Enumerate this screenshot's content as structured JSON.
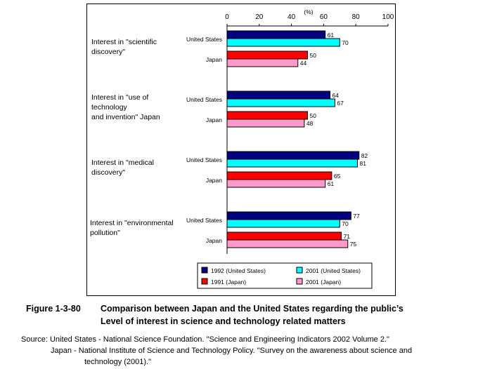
{
  "chart_data": {
    "type": "bar",
    "orientation": "horizontal",
    "unit_label": "(%)",
    "xlim": [
      0,
      100
    ],
    "x_ticks": [
      "0",
      "20",
      "40",
      "60",
      "80",
      "100"
    ],
    "groups": [
      {
        "label_lines": [
          "Interest in \"scientific",
          "discovery\""
        ],
        "rows": [
          {
            "label": "United States",
            "bars": [
              {
                "series": 0,
                "value": 61
              },
              {
                "series": 1,
                "value": 70
              }
            ]
          },
          {
            "label": "Japan",
            "bars": [
              {
                "series": 2,
                "value": 50
              },
              {
                "series": 3,
                "value": 44
              }
            ]
          }
        ]
      },
      {
        "label_lines": [
          "Interest in \"use of",
          "technology",
          "and invention\" Japan"
        ],
        "rows": [
          {
            "label": "United States",
            "bars": [
              {
                "series": 0,
                "value": 64
              },
              {
                "series": 1,
                "value": 67
              }
            ]
          },
          {
            "label": "Japan",
            "bars": [
              {
                "series": 2,
                "value": 50
              },
              {
                "series": 3,
                "value": 48
              }
            ]
          }
        ]
      },
      {
        "label_lines": [
          "Interest in \"medical",
          "discovery\""
        ],
        "rows": [
          {
            "label": "United States",
            "bars": [
              {
                "series": 0,
                "value": 82
              },
              {
                "series": 1,
                "value": 81
              }
            ]
          },
          {
            "label": "Japan",
            "bars": [
              {
                "series": 2,
                "value": 65
              },
              {
                "series": 3,
                "value": 61
              }
            ]
          }
        ]
      },
      {
        "label_lines": [
          "Interest in \"environmental",
          "pollution\""
        ],
        "rows": [
          {
            "label": "United States",
            "bars": [
              {
                "series": 0,
                "value": 77
              },
              {
                "series": 1,
                "value": 70
              }
            ]
          },
          {
            "label": "Japan",
            "bars": [
              {
                "series": 2,
                "value": 71
              },
              {
                "series": 3,
                "value": 75
              }
            ]
          }
        ]
      }
    ],
    "series": [
      {
        "name": "1992 (United States)",
        "color": "#000080"
      },
      {
        "name": "2001 (United States)",
        "color": "#00ffff"
      },
      {
        "name": "1991 (Japan)",
        "color": "#ff0000"
      },
      {
        "name": "2001 (Japan)",
        "color": "#ff99cc"
      }
    ],
    "legend_placement": "bottom",
    "grid": false
  },
  "caption": {
    "number": "Figure 1-3-80",
    "title_line_1": "Comparison between Japan and the United States regarding the public’s",
    "title_line_2": "Level of interest in science and technology related matters"
  },
  "source": {
    "line_1": "Source: United States - National Science Foundation. \"Science and Engineering Indicators 2002 Volume 2.\"",
    "line_2": "Japan - National Institute of Science and Technology Policy. \"Survey on the awareness about science and",
    "line_3": "technology (2001).\""
  }
}
